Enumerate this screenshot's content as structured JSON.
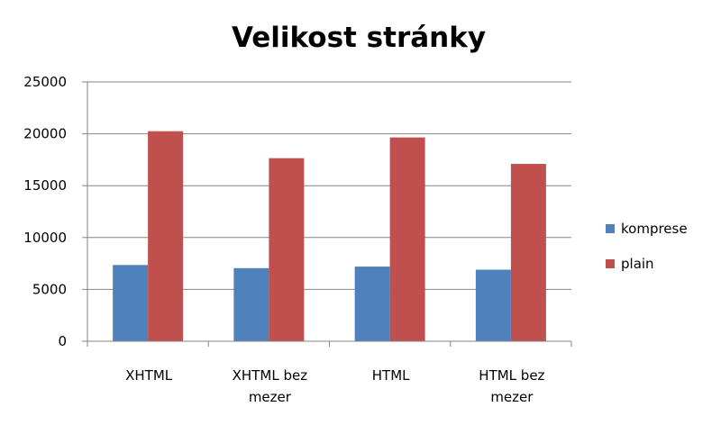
{
  "chart_data": {
    "type": "bar",
    "title": "Velikost stránky",
    "xlabel": "",
    "ylabel": "",
    "categories": [
      [
        "XHTML"
      ],
      [
        "XHTML bez",
        "mezer"
      ],
      [
        "HTML"
      ],
      [
        "HTML bez",
        "mezer"
      ]
    ],
    "series": [
      {
        "name": "komprese",
        "color": "#4f81bd",
        "values": [
          7350,
          7050,
          7200,
          6900
        ]
      },
      {
        "name": "plain",
        "color": "#c0504d",
        "values": [
          20250,
          17650,
          19650,
          17100
        ]
      }
    ],
    "ylim": [
      0,
      25000
    ],
    "yticks": [
      0,
      5000,
      10000,
      15000,
      20000,
      25000
    ],
    "grid": true,
    "legend_position": "right",
    "axis_color": "#868686",
    "grid_color": "#868686"
  }
}
